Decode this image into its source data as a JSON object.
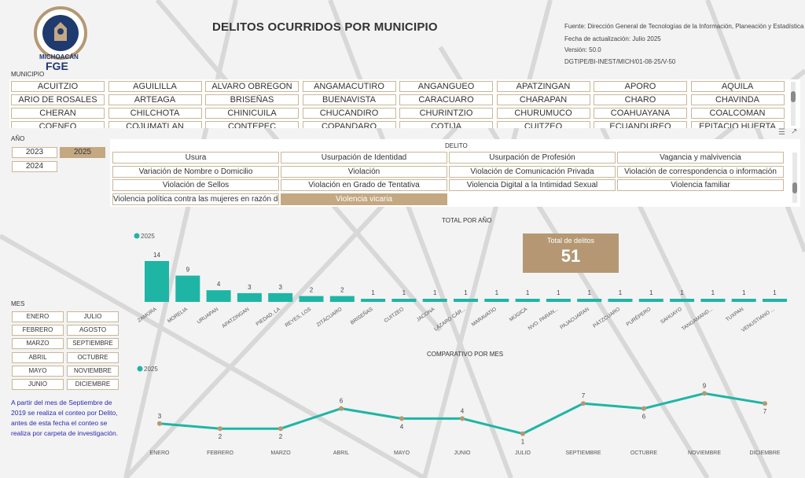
{
  "header": {
    "title": "DELITOS OCURRIDOS POR MUNICIPIO",
    "logo_text_top": "FISCALÍA GENERAL DEL ESTADO",
    "logo_text_state": "MICHOACÁN",
    "logo_text_fge": "FGE",
    "meta": [
      "Fuente: Dirección General de Tecnologías de la Información, Planeación y Estadística",
      "Fecha de actualización: Julio 2025",
      "Versión: 50.0",
      "DGTIPE/BI-INEST/MICH/01-08-25/V-50"
    ]
  },
  "municipio": {
    "label": "MUNICIPIO",
    "items": [
      "ACUITZIO",
      "AGUILILLA",
      "ALVARO OBREGON",
      "ANGAMACUTIRO",
      "ANGANGUEO",
      "APATZINGAN",
      "APORO",
      "AQUILA",
      "ARIO DE ROSALES",
      "ARTEAGA",
      "BRISEÑAS",
      "BUENAVISTA",
      "CARACUARO",
      "CHARAPAN",
      "CHARO",
      "CHAVINDA",
      "CHERAN",
      "CHILCHOTA",
      "CHINICUILA",
      "CHUCANDIRO",
      "CHURINTZIO",
      "CHURUMUCO",
      "COAHUAYANA",
      "COALCOMAN",
      "COENEO",
      "COJUMATLAN",
      "CONTEPEC",
      "COPANDARO",
      "COTIJA",
      "CUITZEO",
      "ECUANDUREO",
      "EPITACIO HUERTA"
    ]
  },
  "anio": {
    "label": "AÑO",
    "items": [
      "2023",
      "2025",
      "2024"
    ],
    "selected": "2025"
  },
  "delito": {
    "label": "DELITO",
    "items": [
      "Usura",
      "Usurpación de Identidad",
      "Usurpación de Profesión",
      "Vagancia y malvivencia",
      "Variación de Nombre o Domicilio",
      "Violación",
      "Violación de Comunicación Privada",
      "Violación de correspondencia o información",
      "Violación de Sellos",
      "Violación en Grado de Tentativa",
      "Violencia Digital a la Intimidad Sexual",
      "Violencia familiar",
      "Violencia política contra las mujeres en razón de género",
      "Violencia vicaria"
    ],
    "selected": "Violencia vicaria"
  },
  "mes": {
    "label": "MES",
    "items": [
      "ENERO",
      "JULIO",
      "FEBRERO",
      "AGOSTO",
      "MARZO",
      "SEPTIEMBRE",
      "ABRIL",
      "OCTUBRE",
      "MAYO",
      "NOVIEMBRE",
      "JUNIO",
      "DICIEMBRE"
    ]
  },
  "note": "A partir  del mes de Septiembre de 2019 se realiza  el conteo por Delito, antes de esta fecha el conteo se realiza por carpeta de investigación.",
  "kpi": {
    "label": "Total de delitos",
    "value": "51"
  },
  "colors": {
    "accent": "#1fb5a5",
    "gold": "#c4a882",
    "kpi": "#b59873"
  },
  "chart_data": [
    {
      "type": "bar",
      "title": "TOTAL POR AÑO",
      "legend": "2025",
      "categories": [
        "ZAMORA",
        "MORELIA",
        "URUAPAN",
        "APATZINGAN",
        "PIEDAD, LA",
        "REYES, LOS",
        "ZITÁCUARO",
        "BRISEÑAS",
        "CUITZEO",
        "JACONA",
        "LÁZARO CÁR...",
        "MARAVATÍO",
        "MÚGICA",
        "NVO. PARAN...",
        "PAJACUARAN",
        "PÁTZCUARO",
        "PURÉPERO",
        "SAHUAYO",
        "TANGAMAND...",
        "TUXPAN",
        "VENUSTIANO ..."
      ],
      "values": [
        14,
        9,
        4,
        3,
        3,
        2,
        2,
        1,
        1,
        1,
        1,
        1,
        1,
        1,
        1,
        1,
        1,
        1,
        1,
        1,
        1
      ]
    },
    {
      "type": "line",
      "title": "COMPARATIVO POR MES",
      "legend": "2025",
      "categories": [
        "ENERO",
        "FEBRERO",
        "MARZO",
        "ABRIL",
        "MAYO",
        "JUNIO",
        "JULIO",
        "SEPTIEMBRE",
        "OCTUBRE",
        "NOVIEMBRE",
        "DICIEMBRE"
      ],
      "values": [
        3,
        2,
        2,
        6,
        4,
        4,
        1,
        7,
        6,
        9,
        7
      ]
    }
  ]
}
